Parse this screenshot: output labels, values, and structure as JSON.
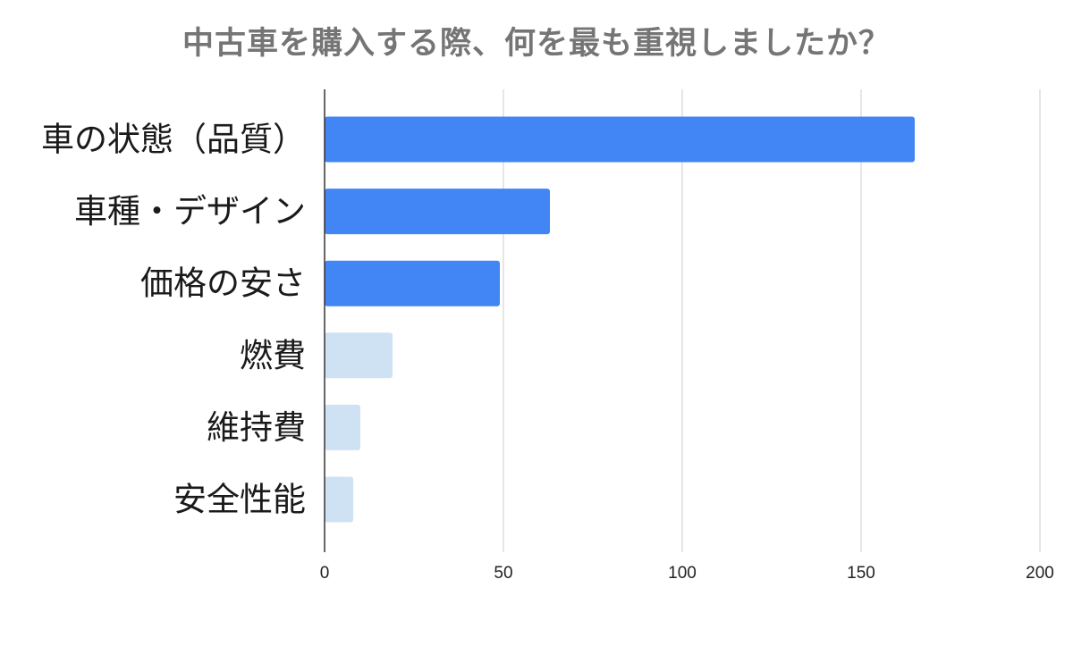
{
  "chart_data": {
    "type": "bar",
    "orientation": "horizontal",
    "title": "中古車を購入する際、何を最も重視しましたか？",
    "xlabel": "",
    "ylabel": "",
    "categories": [
      "車の状態（品質）",
      "車種・デザイン",
      "価格の安さ",
      "燃費",
      "維持費",
      "安全性能"
    ],
    "values": [
      165,
      63,
      49,
      19,
      10,
      8
    ],
    "bar_colors": [
      "#4285F4",
      "#4285F4",
      "#4285F4",
      "#CFE2F3",
      "#CFE2F3",
      "#CFE2F3"
    ],
    "xlim": [
      0,
      200
    ],
    "x_ticks": [
      0,
      50,
      100,
      150,
      200
    ],
    "x_tick_labels": [
      "0",
      "50",
      "100",
      "150",
      "200"
    ],
    "grid": true,
    "legend": "none"
  }
}
